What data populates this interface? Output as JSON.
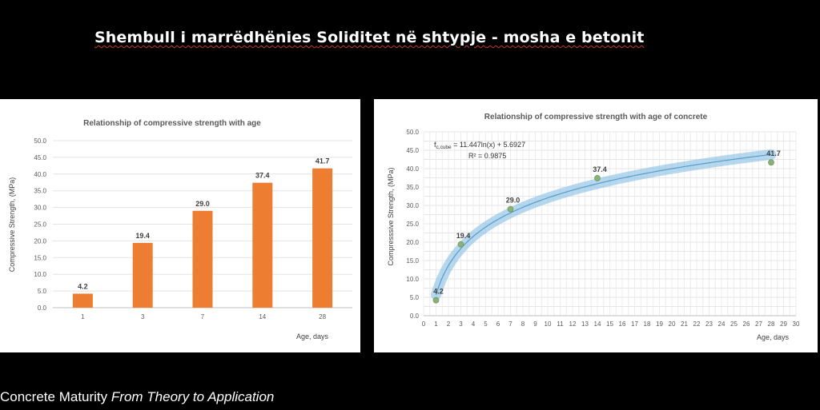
{
  "slide": {
    "title_part1": "Shembull i marrëdhënies ",
    "title_part2": "Soliditet në shtypje",
    "title_part3": " - mosha e betonit",
    "footer_main": "Concrete Maturity",
    "footer_italic": "From Theory to Application"
  },
  "colors": {
    "bar": "#ED7D31",
    "trend_band": "#8FC3E6",
    "trend_line": "#5B9BC7",
    "marker": "#8CB07A"
  },
  "chart_data": [
    {
      "type": "bar",
      "title": "Relationship of compressive strength with age",
      "xlabel": "Age, days",
      "ylabel": "Compressive Strength, (MPa)",
      "categories": [
        "1",
        "3",
        "7",
        "14",
        "28"
      ],
      "values": [
        4.2,
        19.4,
        29.0,
        37.4,
        41.7
      ],
      "value_labels": [
        "4.2",
        "19.4",
        "29.0",
        "37.4",
        "41.7"
      ],
      "ylim": [
        0,
        50
      ],
      "ytick_labels": [
        "0.0",
        "5.0",
        "10.0",
        "15.0",
        "20.0",
        "25.0",
        "30.0",
        "35.0",
        "40.0",
        "45.0",
        "50.0"
      ],
      "grid": true
    },
    {
      "type": "scatter",
      "title": "Relationship of compressive strength with age of concrete",
      "xlabel": "Age, days",
      "ylabel": "Compresssive Strength, (MPa)",
      "x": [
        1,
        3,
        7,
        14,
        28
      ],
      "y": [
        4.2,
        19.4,
        29.0,
        37.4,
        41.7
      ],
      "value_labels": [
        "4.2",
        "19.4",
        "29.0",
        "37.4",
        "41.7"
      ],
      "trendline": {
        "type": "log",
        "a": 11.447,
        "b": 5.6927
      },
      "equation_prefix": "f",
      "equation_sub": "c,cube",
      "equation_rest": " = 11.447ln(x) + 5.6927",
      "r_squared": "R² = 0.9875",
      "xlim": [
        0,
        30
      ],
      "ylim": [
        0,
        50
      ],
      "xtick_labels": [
        "0",
        "1",
        "2",
        "3",
        "4",
        "5",
        "6",
        "7",
        "8",
        "9",
        "10",
        "11",
        "12",
        "13",
        "14",
        "15",
        "16",
        "17",
        "18",
        "19",
        "20",
        "21",
        "22",
        "23",
        "24",
        "25",
        "26",
        "27",
        "28",
        "29",
        "30"
      ],
      "ytick_labels": [
        "0.0",
        "5.0",
        "10.0",
        "15.0",
        "20.0",
        "25.0",
        "30.0",
        "35.0",
        "40.0",
        "45.0",
        "50.0"
      ],
      "grid": true
    }
  ]
}
